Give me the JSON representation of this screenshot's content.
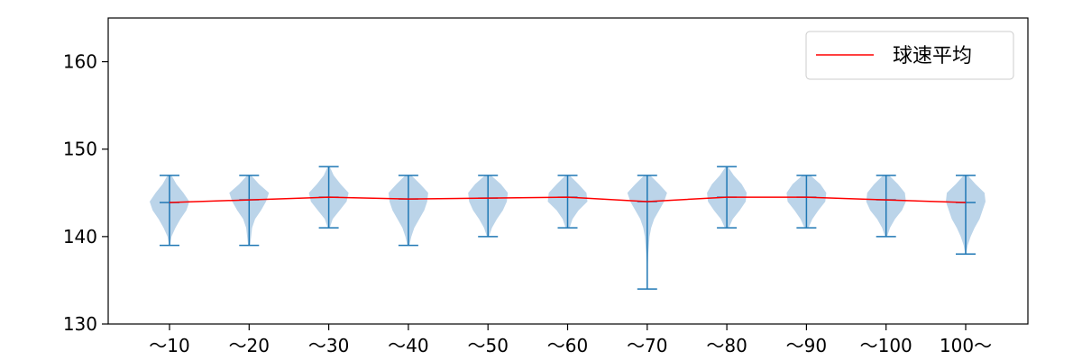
{
  "chart_data": {
    "type": "violin",
    "categories": [
      "～10",
      "～20",
      "～30",
      "～40",
      "～50",
      "～60",
      "～70",
      "～80",
      "～90",
      "～100",
      "100～"
    ],
    "ylim": [
      130,
      165
    ],
    "yticks": [
      130,
      140,
      150,
      160
    ],
    "ytick_labels": [
      "130",
      "140",
      "150",
      "160"
    ],
    "distributions": [
      {
        "min": 139,
        "max": 147,
        "mean": 143.9,
        "points": [
          [
            139,
            0.02
          ],
          [
            140,
            0.1
          ],
          [
            141,
            0.3
          ],
          [
            142,
            0.55
          ],
          [
            143,
            0.85
          ],
          [
            144,
            1.0
          ],
          [
            145,
            0.7
          ],
          [
            146,
            0.35
          ],
          [
            147,
            0.1
          ]
        ]
      },
      {
        "min": 139,
        "max": 147,
        "mean": 144.2,
        "points": [
          [
            139,
            0.05
          ],
          [
            140,
            0.1
          ],
          [
            141,
            0.15
          ],
          [
            142,
            0.3
          ],
          [
            143,
            0.6
          ],
          [
            144,
            0.85
          ],
          [
            145,
            1.0
          ],
          [
            146,
            0.5
          ],
          [
            147,
            0.1
          ]
        ]
      },
      {
        "min": 141,
        "max": 148,
        "mean": 144.5,
        "points": [
          [
            141,
            0.05
          ],
          [
            142,
            0.2
          ],
          [
            143,
            0.55
          ],
          [
            144,
            0.9
          ],
          [
            145,
            1.0
          ],
          [
            146,
            0.6
          ],
          [
            147,
            0.25
          ],
          [
            148,
            0.05
          ]
        ]
      },
      {
        "min": 139,
        "max": 147,
        "mean": 144.3,
        "points": [
          [
            139,
            0.05
          ],
          [
            140,
            0.15
          ],
          [
            141,
            0.3
          ],
          [
            142,
            0.55
          ],
          [
            143,
            0.8
          ],
          [
            144,
            0.95
          ],
          [
            145,
            1.0
          ],
          [
            146,
            0.6
          ],
          [
            147,
            0.15
          ]
        ]
      },
      {
        "min": 140,
        "max": 147,
        "mean": 144.4,
        "points": [
          [
            140,
            0.05
          ],
          [
            141,
            0.2
          ],
          [
            142,
            0.45
          ],
          [
            143,
            0.75
          ],
          [
            144,
            0.95
          ],
          [
            145,
            1.0
          ],
          [
            146,
            0.65
          ],
          [
            147,
            0.15
          ]
        ]
      },
      {
        "min": 141,
        "max": 147,
        "mean": 144.5,
        "points": [
          [
            141,
            0.1
          ],
          [
            142,
            0.25
          ],
          [
            143,
            0.55
          ],
          [
            144,
            1.0
          ],
          [
            145,
            0.95
          ],
          [
            146,
            0.55
          ],
          [
            147,
            0.1
          ]
        ]
      },
      {
        "min": 134,
        "max": 147,
        "mean": 144.0,
        "points": [
          [
            134,
            0.0
          ],
          [
            136,
            0.02
          ],
          [
            138,
            0.05
          ],
          [
            140,
            0.12
          ],
          [
            141,
            0.2
          ],
          [
            142,
            0.35
          ],
          [
            143,
            0.6
          ],
          [
            144,
            0.85
          ],
          [
            145,
            1.0
          ],
          [
            146,
            0.6
          ],
          [
            147,
            0.15
          ]
        ]
      },
      {
        "min": 141,
        "max": 148,
        "mean": 144.5,
        "points": [
          [
            141,
            0.1
          ],
          [
            142,
            0.3
          ],
          [
            143,
            0.65
          ],
          [
            144,
            0.95
          ],
          [
            145,
            1.0
          ],
          [
            146,
            0.75
          ],
          [
            147,
            0.35
          ],
          [
            148,
            0.05
          ]
        ]
      },
      {
        "min": 141,
        "max": 147,
        "mean": 144.5,
        "points": [
          [
            141,
            0.1
          ],
          [
            142,
            0.3
          ],
          [
            143,
            0.6
          ],
          [
            144,
            0.95
          ],
          [
            145,
            1.0
          ],
          [
            146,
            0.7
          ],
          [
            147,
            0.2
          ]
        ]
      },
      {
        "min": 140,
        "max": 147,
        "mean": 144.2,
        "points": [
          [
            140,
            0.05
          ],
          [
            141,
            0.2
          ],
          [
            142,
            0.45
          ],
          [
            143,
            0.8
          ],
          [
            144,
            1.0
          ],
          [
            145,
            0.95
          ],
          [
            146,
            0.6
          ],
          [
            147,
            0.15
          ]
        ]
      },
      {
        "min": 138,
        "max": 147,
        "mean": 143.9,
        "points": [
          [
            138,
            0.02
          ],
          [
            139,
            0.1
          ],
          [
            140,
            0.25
          ],
          [
            141,
            0.45
          ],
          [
            142,
            0.7
          ],
          [
            143,
            0.85
          ],
          [
            144,
            1.0
          ],
          [
            145,
            0.95
          ],
          [
            146,
            0.5
          ],
          [
            147,
            0.1
          ]
        ]
      }
    ],
    "mean_line_label": "球速平均",
    "legend_position": "upper right",
    "grid": false,
    "colors": {
      "violin_fill": "#9ec2e0",
      "violin_edge": "#1f77b4",
      "mean_line": "#ff0000"
    }
  }
}
